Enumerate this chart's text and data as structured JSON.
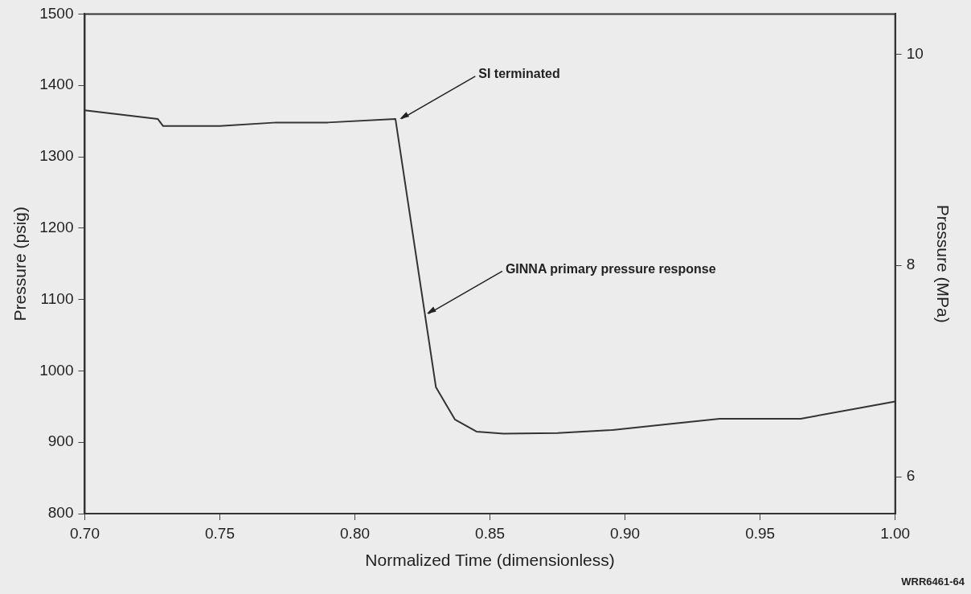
{
  "chart_data": {
    "type": "line",
    "xlabel": "Normalized Time (dimensionless)",
    "ylabel": "Pressure (psig)",
    "y2label": "Pressure (MPa)",
    "x": [
      0.7,
      0.727,
      0.729,
      0.75,
      0.771,
      0.79,
      0.815,
      0.83,
      0.837,
      0.845,
      0.855,
      0.875,
      0.895,
      0.915,
      0.935,
      0.965,
      1.0
    ],
    "series": [
      {
        "color": "#333333",
        "values": [
          1365,
          1353,
          1343,
          1343,
          1348,
          1348,
          1353,
          977,
          932,
          915,
          912,
          913,
          917,
          925,
          933,
          933,
          957
        ]
      }
    ],
    "xlim": [
      0.7,
      1.0
    ],
    "xticks": [
      {
        "value": 0.7,
        "label": "0.70"
      },
      {
        "value": 0.75,
        "label": "0.75"
      },
      {
        "value": 0.8,
        "label": "0.80"
      },
      {
        "value": 0.85,
        "label": "0.85"
      },
      {
        "value": 0.9,
        "label": "0.90"
      },
      {
        "value": 0.95,
        "label": "0.95"
      },
      {
        "value": 1.0,
        "label": "1.00"
      }
    ],
    "ylim": [
      800,
      1500
    ],
    "yticks": [
      800,
      900,
      1000,
      1100,
      1200,
      1300,
      1400,
      1500
    ],
    "y2lim": [
      5.65,
      10.38
    ],
    "y2ticks": [
      6,
      8,
      10
    ],
    "annotations": [
      {
        "text": "SI terminated",
        "x": 0.816,
        "y": 1353
      },
      {
        "text": "GINNA primary pressure response",
        "x": 0.826,
        "y": 1080
      },
      "WRR6461-64"
    ],
    "grid": false,
    "legend": false,
    "marker": "none",
    "line_style": "solid"
  }
}
